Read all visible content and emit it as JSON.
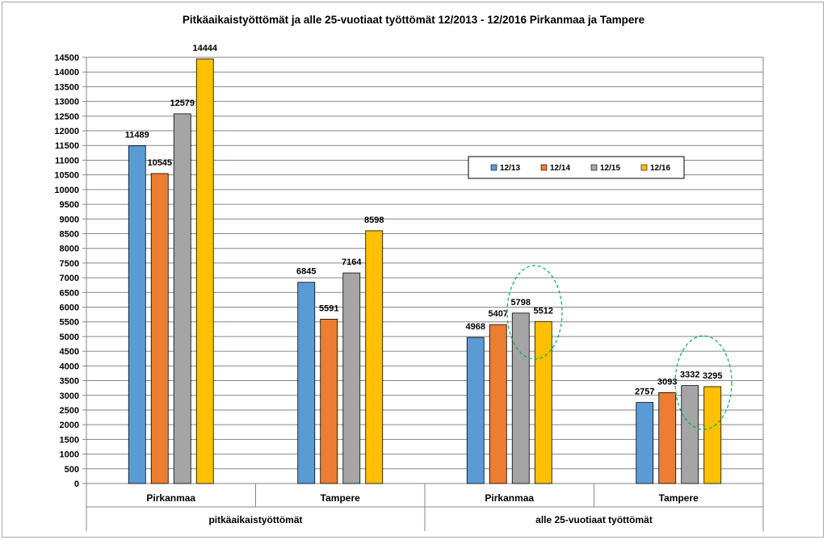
{
  "chart_data": {
    "type": "bar",
    "title": "Pitkäaikaistyöttömät ja alle 25-vuotiaat työttömät 12/2013 - 12/2016 Pirkanmaa ja Tampere",
    "xlabel": "",
    "ylabel": "",
    "ylim": [
      0,
      14500
    ],
    "ytick_step": 500,
    "grid": true,
    "legend_position": "right-middle",
    "group_labels": [
      "pitkäaikaistyöttömät",
      "alle 25-vuotiaat työttömät"
    ],
    "categories": [
      "Pirkanmaa",
      "Tampere",
      "Pirkanmaa",
      "Tampere"
    ],
    "series": [
      {
        "name": "12/13",
        "color": "#5b9bd5",
        "values": [
          11489,
          6845,
          4968,
          2757
        ]
      },
      {
        "name": "12/14",
        "color": "#ed7d31",
        "values": [
          10545,
          5591,
          5407,
          3093
        ]
      },
      {
        "name": "12/15",
        "color": "#a5a5a5",
        "values": [
          12579,
          7164,
          5798,
          3332
        ]
      },
      {
        "name": "12/16",
        "color": "#ffc000",
        "values": [
          14444,
          8598,
          5512,
          3295
        ]
      }
    ]
  }
}
